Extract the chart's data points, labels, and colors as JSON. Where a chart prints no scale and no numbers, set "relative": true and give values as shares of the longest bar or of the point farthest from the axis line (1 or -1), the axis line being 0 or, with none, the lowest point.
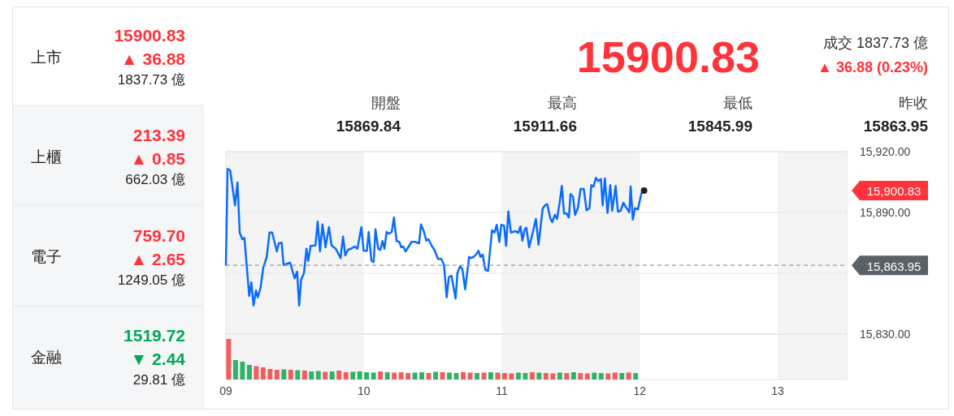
{
  "chart_data": [
    {
      "type": "other",
      "annotations": [
        "上市",
        "15900.83",
        "▲ 36.88",
        "1837.73 億",
        "上櫃",
        "213.39",
        "▲ 0.85",
        "662.03 億",
        "電子",
        "759.70",
        "▲ 2.65",
        "1249.05 億",
        "金融",
        "1519.72",
        "▼ 2.44",
        "29.81 億",
        "15900.83",
        "成交 1837.73 億",
        "▲ 36.88 (0.23%)",
        "開盤",
        "15869.84",
        "最高",
        "15911.66",
        "最低",
        "15845.99",
        "昨收",
        "15863.95"
      ],
      "colors": [
        "#222222",
        "#ff333a",
        "#ff333a",
        "#222222",
        "#222222",
        "#ff333a",
        "#ff333a",
        "#222222",
        "#222222",
        "#ff333a",
        "#ff333a",
        "#222222",
        "#222222",
        "#00a85a",
        "#00a85a",
        "#222222",
        "#ff333a",
        "#333333",
        "#ff333a",
        "#444444",
        "#222222",
        "#444444",
        "#222222",
        "#444444",
        "#222222",
        "#444444",
        "#222222"
      ]
    },
    {
      "type": "line",
      "xlim": [
        9,
        13.5
      ],
      "ylim": [
        15830,
        15920
      ],
      "yticks": [
        {
          "value": 15920,
          "label": "15,920.00"
        },
        {
          "value": 15890,
          "label": "15,890.00"
        },
        {
          "value": 15860,
          "label": null
        },
        {
          "value": 15830,
          "label": "15,830.00"
        }
      ],
      "tick_labels": "y",
      "grid": "y",
      "bands": [
        {
          "axis": "x",
          "from": 9,
          "to": 10,
          "color": "#f4f4f4"
        },
        {
          "axis": "x",
          "from": 11,
          "to": 12,
          "color": "#f4f4f4"
        },
        {
          "axis": "x",
          "from": 13,
          "to": 13.5,
          "color": "#f4f4f4"
        }
      ],
      "ref_lines": [
        {
          "axis": "y",
          "value": 15863.95,
          "label": "15,863.95",
          "color": "#9a9a9a",
          "line_style": "dashed"
        }
      ],
      "annotations": [
        "15,900.83"
      ],
      "series": [
        {
          "type": "line",
          "color": "#0a6cff",
          "x": [
            9.0,
            9.012,
            9.031,
            9.066,
            9.084,
            9.1,
            9.119,
            9.134,
            9.169,
            9.184,
            9.2,
            9.218,
            9.231,
            9.251,
            9.271,
            9.296,
            9.316,
            9.335,
            9.369,
            9.384,
            9.404,
            9.418,
            9.466,
            9.498,
            9.516,
            9.531,
            9.545,
            9.566,
            9.584,
            9.596,
            9.614,
            9.649,
            9.665,
            9.682,
            9.7,
            9.722,
            9.747,
            9.766,
            9.796,
            9.831,
            9.849,
            9.865,
            9.884,
            9.914,
            9.934,
            9.953,
            9.982,
            9.998,
            10.022,
            10.035,
            10.055,
            10.071,
            10.084,
            10.104,
            10.119,
            10.135,
            10.149,
            10.165,
            10.182,
            10.202,
            10.218,
            10.237,
            10.257,
            10.271,
            10.286,
            10.302,
            10.325,
            10.345,
            10.369,
            10.4,
            10.414,
            10.434,
            10.453,
            10.469,
            10.492,
            10.512,
            10.537,
            10.561,
            10.581,
            10.6,
            10.616,
            10.635,
            10.665,
            10.678,
            10.698,
            10.714,
            10.734,
            10.763,
            10.776,
            10.796,
            10.816,
            10.831,
            10.845,
            10.861,
            10.881,
            10.9,
            10.929,
            10.947,
            10.963,
            10.982,
            10.996,
            11.016,
            11.031,
            11.047,
            11.066,
            11.1,
            11.119,
            11.135,
            11.149,
            11.165,
            11.178,
            11.198,
            11.224,
            11.247,
            11.266,
            11.296,
            11.316,
            11.329,
            11.351,
            11.365,
            11.384,
            11.4,
            11.419,
            11.435,
            11.451,
            11.469,
            11.486,
            11.498,
            11.516,
            11.531,
            11.551,
            11.571,
            11.594,
            11.614,
            11.635,
            11.649,
            11.665,
            11.682,
            11.698,
            11.718,
            11.731,
            11.747,
            11.766,
            11.786,
            11.8,
            11.825,
            11.841,
            11.861,
            11.881,
            11.898,
            11.924,
            11.934,
            11.949,
            11.966,
            11.986,
            12.012,
            12.031
          ],
          "values": [
            15864.1,
            15911.5,
            15910.8,
            15893.5,
            15904.8,
            15880.1,
            15876.8,
            15877.5,
            15848.8,
            15855.5,
            15844.1,
            15851.5,
            15848.1,
            15852.8,
            15862.8,
            15868.1,
            15880.1,
            15880.1,
            15870.8,
            15874.8,
            15875.1,
            15864.1,
            15865.2,
            15857.5,
            15860.8,
            15844.1,
            15856.8,
            15860.1,
            15872.1,
            15866.1,
            15873.5,
            15873.7,
            15885.5,
            15870.8,
            15884.1,
            15872.8,
            15882.8,
            15873.7,
            15872.1,
            15867.5,
            15878.1,
            15868.8,
            15871.5,
            15872.4,
            15873.2,
            15872.1,
            15882.8,
            15871.1,
            15871.1,
            15880.4,
            15866.1,
            15865.5,
            15881.7,
            15872.1,
            15871.5,
            15875.9,
            15872.1,
            15880.4,
            15879.5,
            15880.4,
            15887.5,
            15875.9,
            15875.5,
            15872.8,
            15873.2,
            15870.8,
            15873.2,
            15875.5,
            15875.5,
            15874.8,
            15884.1,
            15880.8,
            15876.1,
            15876.8,
            15873.5,
            15871.5,
            15867.1,
            15867.1,
            15864.1,
            15848.1,
            15858.1,
            15858.8,
            15847.5,
            15860.1,
            15863.5,
            15862.1,
            15852.1,
            15868.1,
            15867.5,
            15868.1,
            15869.5,
            15871.1,
            15868.1,
            15869.2,
            15861.7,
            15861.2,
            15881.2,
            15880.1,
            15883.9,
            15875.5,
            15883.9,
            15883.5,
            15873.5,
            15890.5,
            15880.1,
            15880.8,
            15879.9,
            15883.1,
            15876.1,
            15881.5,
            15882.5,
            15872.8,
            15880.1,
            15886.8,
            15874.1,
            15891.9,
            15893.7,
            15894.1,
            15887.1,
            15885.2,
            15888.8,
            15886.8,
            15894.8,
            15903.1,
            15889.5,
            15889.5,
            15887.5,
            15899.1,
            15897.7,
            15888.8,
            15892.1,
            15901.6,
            15901.6,
            15891.1,
            15892.1,
            15903.5,
            15902.8,
            15907.1,
            15905.5,
            15906.5,
            15893.5,
            15906.8,
            15889.7,
            15903.5,
            15890.8,
            15903.1,
            15890.4,
            15890.8,
            15894.8,
            15892.8,
            15890.1,
            15902.8,
            15886.5,
            15892.1,
            15891.5,
            15899.5,
            15900.83
          ]
        },
        {
          "type": "scatter",
          "color": "#222222",
          "marker": "circle",
          "x": [
            12.031
          ],
          "values": [
            15900.83
          ]
        }
      ]
    },
    {
      "type": "bar",
      "relative": true,
      "xlim": [
        9,
        13.5
      ],
      "xticks": [
        {
          "value": 9,
          "label": "09"
        },
        10,
        11,
        12,
        13
      ],
      "tick_labels": "x",
      "bands": [
        {
          "axis": "x",
          "from": 9,
          "to": 10,
          "color": "#f4f4f4"
        },
        {
          "axis": "x",
          "from": 11,
          "to": 12,
          "color": "#f4f4f4"
        },
        {
          "axis": "x",
          "from": 13,
          "to": 13.5,
          "color": "#f4f4f4"
        }
      ],
      "x": [
        9.02,
        9.07,
        9.12,
        9.17,
        9.22,
        9.27,
        9.32,
        9.37,
        9.42,
        9.47,
        9.52,
        9.57,
        9.62,
        9.67,
        9.72,
        9.77,
        9.82,
        9.87,
        9.92,
        9.97,
        10.02,
        10.07,
        10.12,
        10.17,
        10.22,
        10.27,
        10.32,
        10.37,
        10.42,
        10.47,
        10.52,
        10.57,
        10.62,
        10.67,
        10.72,
        10.77,
        10.82,
        10.87,
        10.92,
        10.97,
        11.02,
        11.07,
        11.12,
        11.17,
        11.22,
        11.27,
        11.32,
        11.37,
        11.42,
        11.47,
        11.52,
        11.57,
        11.62,
        11.67,
        11.72,
        11.77,
        11.82,
        11.87,
        11.92,
        11.97
      ],
      "values": [
        1,
        0.48,
        0.44,
        0.36,
        0.33,
        0.3,
        0.26,
        0.24,
        0.25,
        0.24,
        0.23,
        0.22,
        0.2,
        0.21,
        0.19,
        0.2,
        0.22,
        0.18,
        0.19,
        0.2,
        0.18,
        0.17,
        0.2,
        0.18,
        0.17,
        0.18,
        0.16,
        0.17,
        0.18,
        0.16,
        0.19,
        0.18,
        0.17,
        0.16,
        0.18,
        0.17,
        0.16,
        0.17,
        0.18,
        0.17,
        0.16,
        0.15,
        0.17,
        0.16,
        0.18,
        0.17,
        0.16,
        0.15,
        0.17,
        0.16,
        0.18,
        0.16,
        0.15,
        0.17,
        0.16,
        0.15,
        0.17,
        0.16,
        0.17,
        0.16
      ],
      "colors": [
        "#f25c5c",
        "#2fb36a",
        "#2fb36a",
        "#2fb36a",
        "#f25c5c",
        "#f25c5c",
        "#f25c5c",
        "#f25c5c",
        "#2fb36a",
        "#f25c5c",
        "#2fb36a",
        "#f25c5c",
        "#2fb36a",
        "#2fb36a",
        "#f25c5c",
        "#2fb36a",
        "#f25c5c",
        "#f25c5c",
        "#2fb36a",
        "#2fb36a",
        "#2fb36a",
        "#2fb36a",
        "#f25c5c",
        "#2fb36a",
        "#f25c5c",
        "#f25c5c",
        "#f25c5c",
        "#2fb36a",
        "#2fb36a",
        "#f25c5c",
        "#2fb36a",
        "#f25c5c",
        "#2fb36a",
        "#2fb36a",
        "#f25c5c",
        "#f25c5c",
        "#2fb36a",
        "#f25c5c",
        "#2fb36a",
        "#f25c5c",
        "#f25c5c",
        "#f25c5c",
        "#2fb36a",
        "#2fb36a",
        "#f25c5c",
        "#2fb36a",
        "#f25c5c",
        "#f25c5c",
        "#2fb36a",
        "#f25c5c",
        "#2fb36a",
        "#f25c5c",
        "#f25c5c",
        "#2fb36a",
        "#2fb36a",
        "#f25c5c",
        "#f25c5c",
        "#2fb36a",
        "#f25c5c",
        "#2fb36a"
      ]
    }
  ]
}
